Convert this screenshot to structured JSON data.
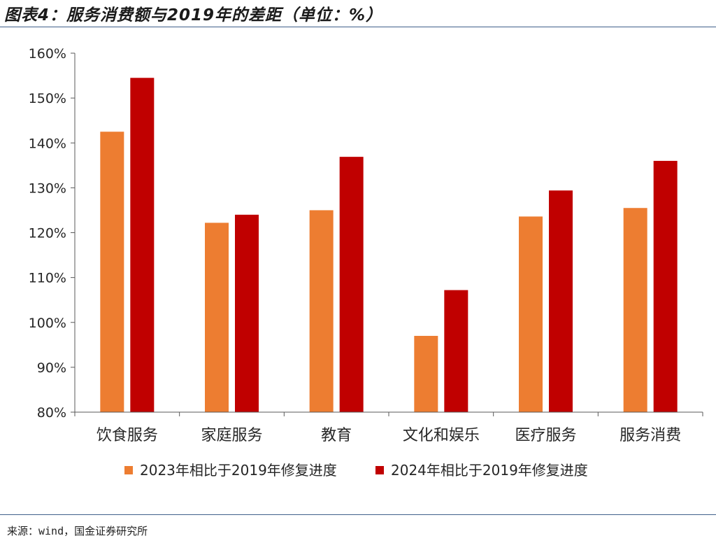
{
  "header": {
    "title": "图表4：服务消费额与2019年的差距（单位：%）"
  },
  "footer": {
    "source": "来源：wind，国金证券研究所"
  },
  "chart_data": {
    "type": "bar",
    "title": "图表4：服务消费额与2019年的差距（单位：%）",
    "xlabel": "",
    "ylabel": "",
    "categories": [
      "饮食服务",
      "家庭服务",
      "教育",
      "文化和娱乐",
      "医疗服务",
      "服务消费"
    ],
    "series": [
      {
        "name": "2023年相比于2019年修复进度",
        "color": "#ED7D31",
        "values": [
          142.5,
          122.2,
          125.0,
          97.0,
          123.6,
          125.5
        ]
      },
      {
        "name": "2024年相比于2019年修复进度",
        "color": "#C00000",
        "values": [
          154.5,
          124.0,
          136.9,
          107.2,
          129.4,
          136.0
        ]
      }
    ],
    "ylim": [
      80,
      160
    ],
    "yticks": [
      80,
      90,
      100,
      110,
      120,
      130,
      140,
      150,
      160
    ],
    "ytick_labels": [
      "80%",
      "90%",
      "100%",
      "110%",
      "120%",
      "130%",
      "140%",
      "150%",
      "160%"
    ],
    "y_unit": "%",
    "grid": false,
    "legend_position": "bottom"
  }
}
